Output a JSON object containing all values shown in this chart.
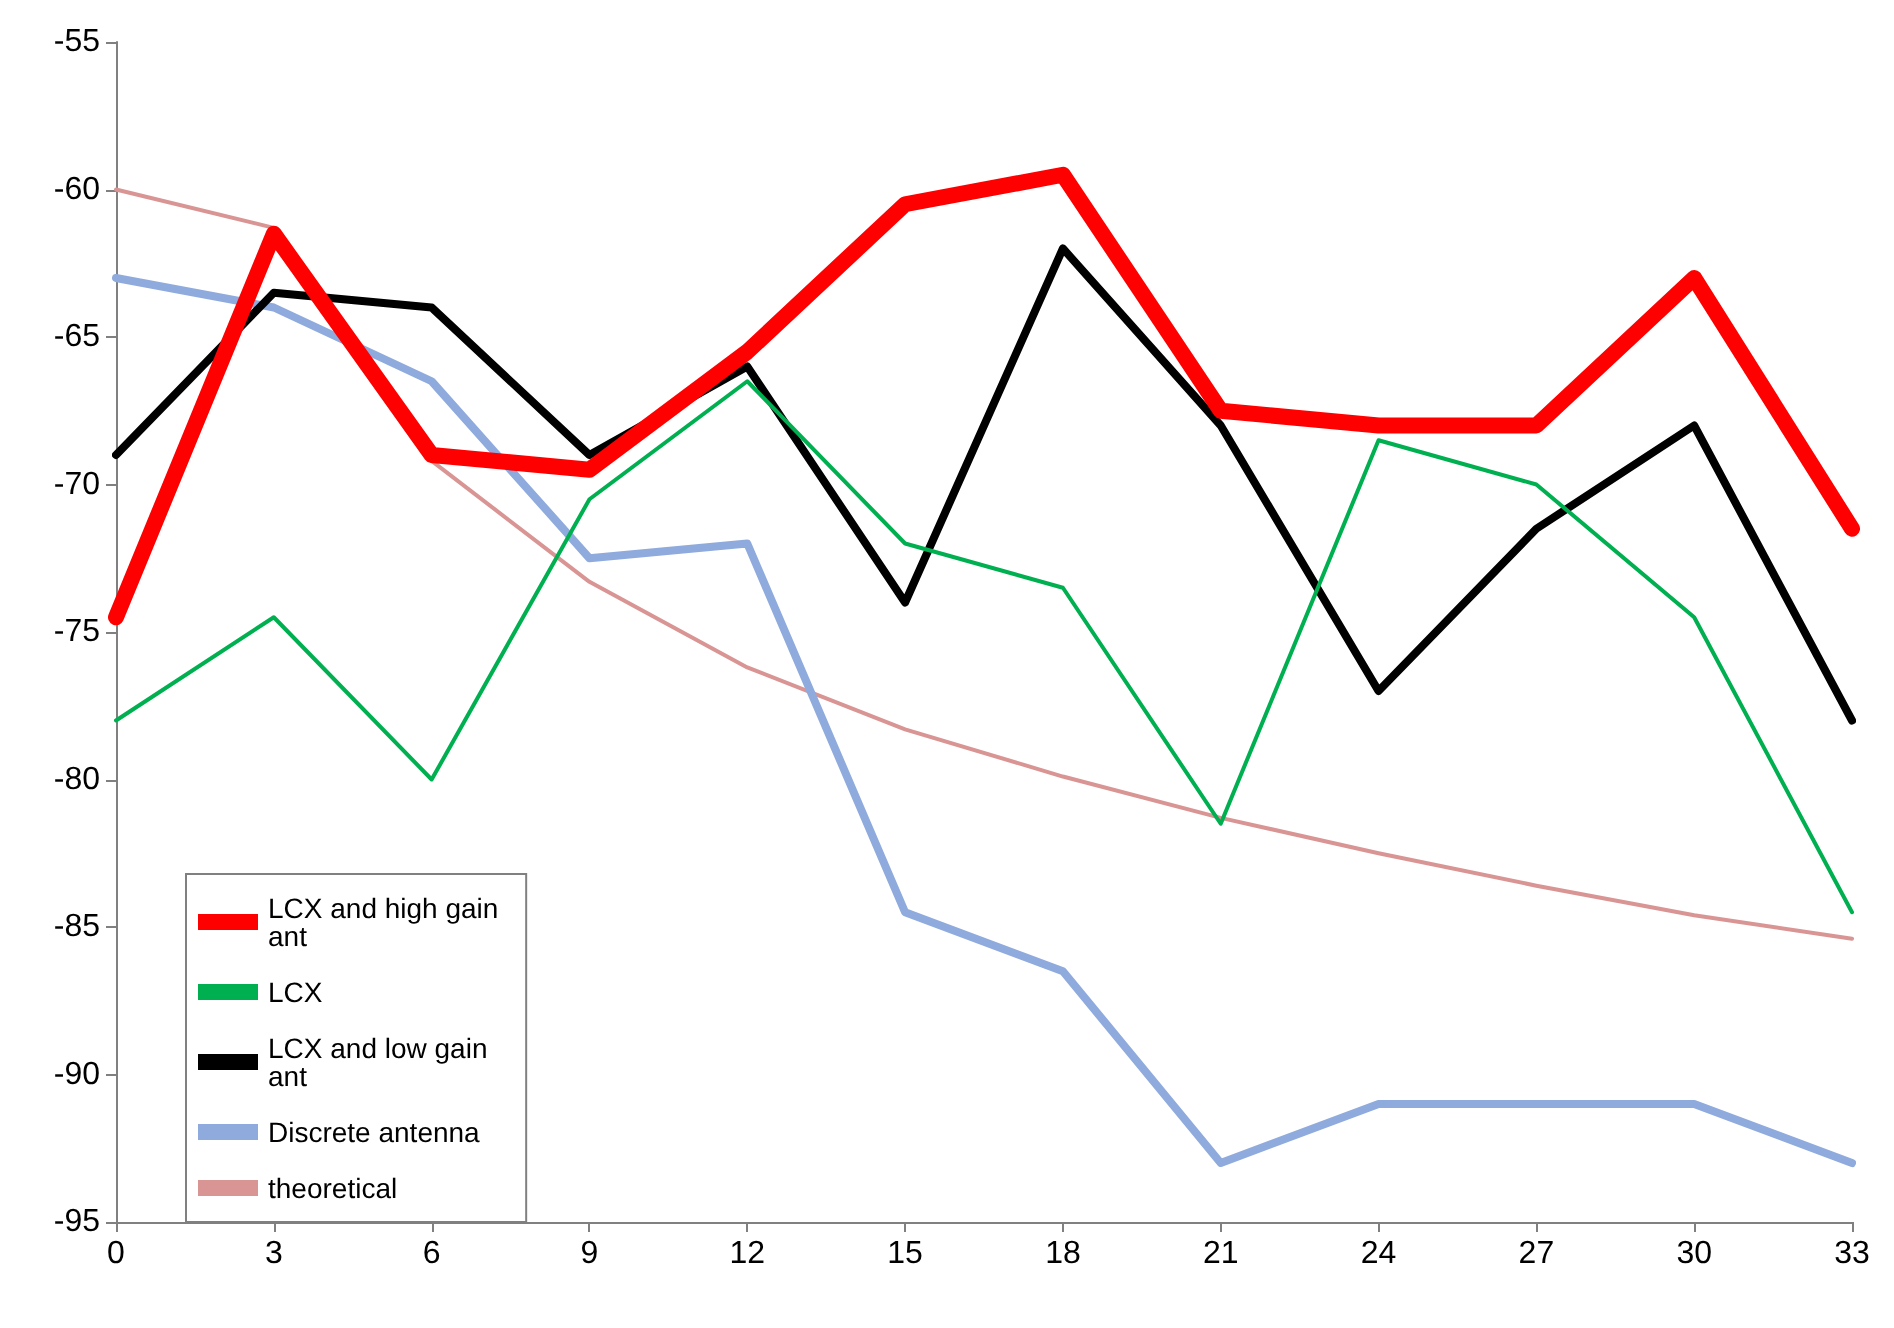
{
  "chart_data": {
    "type": "line",
    "x": [
      0,
      3,
      6,
      9,
      12,
      15,
      18,
      21,
      24,
      27,
      30,
      33
    ],
    "xlim": [
      0,
      33
    ],
    "xticks": [
      0,
      3,
      6,
      9,
      12,
      15,
      18,
      21,
      24,
      27,
      30,
      33
    ],
    "ylim": [
      -95,
      -55
    ],
    "yticks": [
      -95,
      -90,
      -85,
      -80,
      -75,
      -70,
      -65,
      -60,
      -55
    ],
    "grid": false,
    "legend": "bottom left",
    "marker": "none",
    "line_style": "solid",
    "series": [
      {
        "name": "LCX and high gain ant",
        "color": "#ff0000",
        "values": [
          -74.5,
          -61.5,
          -69,
          -69.5,
          -65.5,
          -60.5,
          -59.5,
          -67.5,
          -68,
          -68,
          -63,
          -71.5
        ]
      },
      {
        "name": "LCX",
        "color": "#00b050",
        "values": [
          -78,
          -74.5,
          -80,
          -70.5,
          -66.5,
          -72,
          -73.5,
          -81.5,
          -68.5,
          -70,
          -74.5,
          -84.5
        ]
      },
      {
        "name": "LCX and low gain ant",
        "color": "#000000",
        "values": [
          -69,
          -63.5,
          -64,
          -69,
          -66,
          -74,
          -62,
          -68,
          -77,
          -71.5,
          -68,
          -78
        ]
      },
      {
        "name": "Discrete antenna",
        "color": "#8faadc",
        "values": [
          -63,
          -64,
          -66.5,
          -72.5,
          -72,
          -84.5,
          -86.5,
          -93,
          -91,
          -91,
          -91,
          -93
        ]
      },
      {
        "name": "theoretical",
        "color": "#d99594",
        "values": [
          -60,
          -61.3,
          -69.2,
          -73.3,
          -76.2,
          -78.3,
          -79.9,
          -81.3,
          -82.5,
          -83.6,
          -84.6,
          -85.4
        ]
      }
    ]
  }
}
